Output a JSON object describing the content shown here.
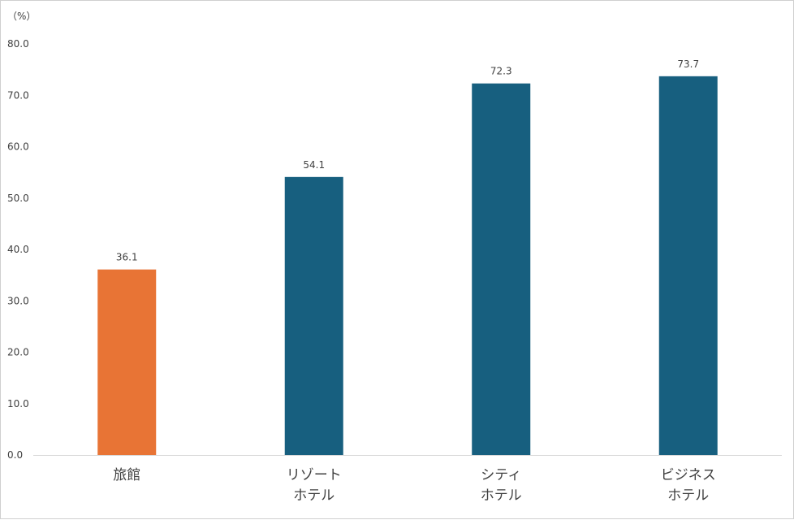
{
  "chart_data": {
    "type": "bar",
    "title": "",
    "xlabel": "",
    "ylabel": "",
    "unit_label": "（%）",
    "categories": [
      [
        "旅館"
      ],
      [
        "リゾート",
        "ホテル"
      ],
      [
        "シティ",
        "ホテル"
      ],
      [
        "ビジネス",
        "ホテル"
      ]
    ],
    "values": [
      36.1,
      54.1,
      72.3,
      73.7
    ],
    "value_labels": [
      "36.1",
      "54.1",
      "72.3",
      "73.7"
    ],
    "bar_colors": [
      "#E87435",
      "#175F7F",
      "#175F7F",
      "#175F7F"
    ],
    "ylim": [
      0,
      80
    ],
    "yticks": [
      0,
      10,
      20,
      30,
      40,
      50,
      60,
      70,
      80
    ],
    "ytick_labels": [
      "0.0",
      "10.0",
      "20.0",
      "30.0",
      "40.0",
      "50.0",
      "60.0",
      "70.0",
      "80.0"
    ],
    "grid": false,
    "legend": "none"
  }
}
